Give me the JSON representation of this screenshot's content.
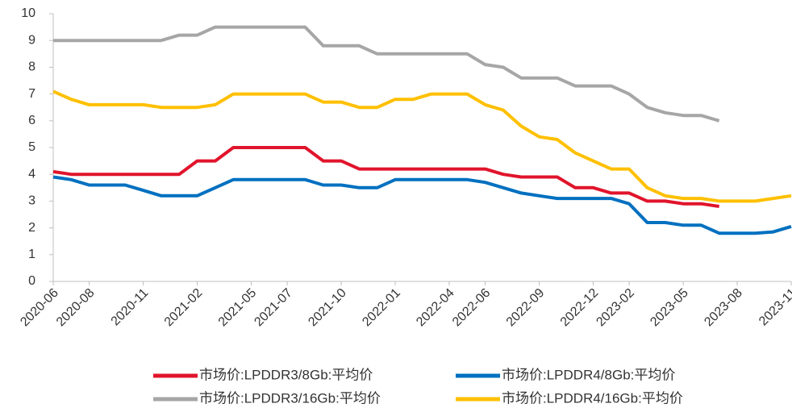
{
  "chart_data": {
    "type": "line",
    "x": [
      "2020-06",
      "2020-07",
      "2020-08",
      "2020-09",
      "2020-10",
      "2020-11",
      "2020-12",
      "2021-01",
      "2021-02",
      "2021-03",
      "2021-04",
      "2021-05",
      "2021-06",
      "2021-07",
      "2021-08",
      "2021-09",
      "2021-10",
      "2021-11",
      "2021-12",
      "2022-01",
      "2022-02",
      "2022-03",
      "2022-04",
      "2022-05",
      "2022-06",
      "2022-07",
      "2022-08",
      "2022-09",
      "2022-10",
      "2022-11",
      "2022-12",
      "2023-01",
      "2023-02",
      "2023-03",
      "2023-04",
      "2023-05",
      "2023-06",
      "2023-07",
      "2023-08",
      "2023-09",
      "2023-10",
      "2023-11"
    ],
    "xticks": [
      "2020-06",
      "2020-08",
      "2020-11",
      "2021-02",
      "2021-05",
      "2021-07",
      "2021-10",
      "2022-01",
      "2022-04",
      "2022-06",
      "2022-09",
      "2022-12",
      "2023-02",
      "2023-05",
      "2023-08",
      "2023-11"
    ],
    "ylim": [
      0,
      10
    ],
    "yticks": [
      0,
      1,
      2,
      3,
      4,
      5,
      6,
      7,
      8,
      9,
      10
    ],
    "grid": false,
    "series": [
      {
        "name": "市场价:LPDDR3/8Gb:平均价",
        "color": "#e0142b",
        "values": [
          4.1,
          4.0,
          4.0,
          4.0,
          4.0,
          4.0,
          4.0,
          4.0,
          4.5,
          4.5,
          5.0,
          5.0,
          5.0,
          5.0,
          5.0,
          4.5,
          4.5,
          4.2,
          4.2,
          4.2,
          4.2,
          4.2,
          4.2,
          4.2,
          4.2,
          4.0,
          3.9,
          3.9,
          3.9,
          3.5,
          3.5,
          3.3,
          3.3,
          3.0,
          3.0,
          2.9,
          2.9,
          2.8,
          null,
          null,
          null,
          null
        ]
      },
      {
        "name": "市场价:LPDDR4/8Gb:平均价",
        "color": "#0070c0",
        "values": [
          3.9,
          3.8,
          3.6,
          3.6,
          3.6,
          3.4,
          3.2,
          3.2,
          3.2,
          3.5,
          3.8,
          3.8,
          3.8,
          3.8,
          3.8,
          3.6,
          3.6,
          3.5,
          3.5,
          3.8,
          3.8,
          3.8,
          3.8,
          3.8,
          3.7,
          3.5,
          3.3,
          3.2,
          3.1,
          3.1,
          3.1,
          3.1,
          2.9,
          2.2,
          2.2,
          2.1,
          2.1,
          1.8,
          1.8,
          1.8,
          1.85,
          2.05
        ]
      },
      {
        "name": "市场价:LPDDR3/16Gb:平均价",
        "color": "#a6a6a6",
        "values": [
          9,
          9,
          9,
          9,
          9,
          9,
          9,
          9.2,
          9.2,
          9.5,
          9.5,
          9.5,
          9.5,
          9.5,
          9.5,
          8.8,
          8.8,
          8.8,
          8.5,
          8.5,
          8.5,
          8.5,
          8.5,
          8.5,
          8.1,
          8.0,
          7.6,
          7.6,
          7.6,
          7.3,
          7.3,
          7.3,
          7.0,
          6.5,
          6.3,
          6.2,
          6.2,
          6.0,
          null,
          null,
          null,
          null
        ]
      },
      {
        "name": "市场价:LPDDR4/16Gb:平均价",
        "color": "#ffc000",
        "values": [
          7.1,
          6.8,
          6.6,
          6.6,
          6.6,
          6.6,
          6.5,
          6.5,
          6.5,
          6.6,
          7.0,
          7.0,
          7.0,
          7.0,
          7.0,
          6.7,
          6.7,
          6.5,
          6.5,
          6.8,
          6.8,
          7.0,
          7.0,
          7.0,
          6.6,
          6.4,
          5.8,
          5.4,
          5.3,
          4.8,
          4.5,
          4.2,
          4.2,
          3.5,
          3.2,
          3.1,
          3.1,
          3.0,
          3.0,
          3.0,
          3.1,
          3.2
        ]
      }
    ]
  }
}
